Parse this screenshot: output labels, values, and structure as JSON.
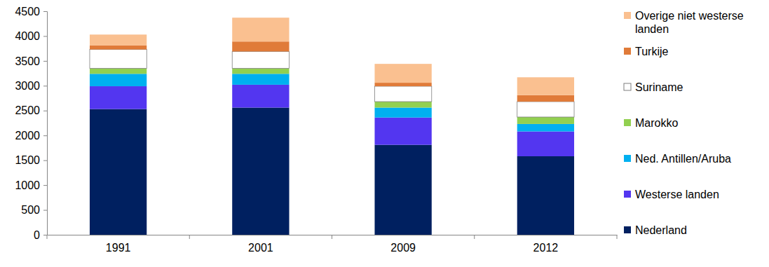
{
  "chart_data": {
    "type": "bar",
    "stacked": true,
    "legend": "right",
    "grid": false,
    "categories": [
      "1991",
      "2001",
      "2009",
      "2012"
    ],
    "ylim": [
      0,
      4500
    ],
    "yticks": [
      0,
      500,
      1000,
      1500,
      2000,
      2500,
      3000,
      3500,
      4000,
      4500
    ],
    "series": [
      {
        "name": "Nederland",
        "color": "#002060",
        "values": [
          2530,
          2560,
          1810,
          1580
        ]
      },
      {
        "name": "Westerse landen",
        "color": "#5336F0",
        "values": [
          460,
          460,
          550,
          500
        ]
      },
      {
        "name": "Ned. Antillen/Aruba",
        "color": "#00B0F0",
        "values": [
          250,
          220,
          200,
          150
        ]
      },
      {
        "name": "Marokko",
        "color": "#92D050",
        "values": [
          110,
          110,
          120,
          140
        ]
      },
      {
        "name": "Suriname",
        "color": "#FFFFFF",
        "values": [
          380,
          340,
          310,
          310
        ]
      },
      {
        "name": "Turkije",
        "color": "#E07B39",
        "values": [
          80,
          200,
          70,
          130
        ]
      },
      {
        "name": "Overige niet westerse landen",
        "color": "#FAC090",
        "values": [
          220,
          480,
          380,
          360
        ]
      }
    ]
  }
}
